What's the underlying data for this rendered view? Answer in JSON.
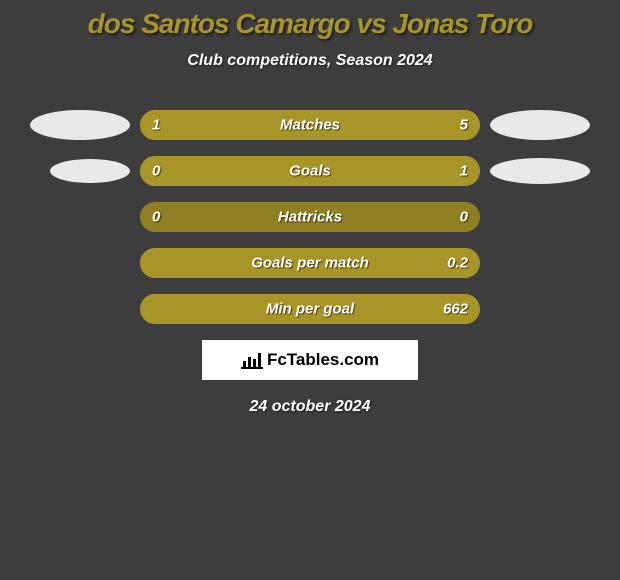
{
  "background_color": "#3d3d3d",
  "title": {
    "text": "dos Santos Camargo vs Jonas Toro",
    "color": "#a89527",
    "fontsize": 28
  },
  "subtitle": {
    "text": "Club competitions, Season 2024",
    "fontsize": 16
  },
  "accent_color": "#a89527",
  "ellipse_color": "#e9e9e9",
  "bar_bg_color": "#8f7f22",
  "label_fontsize": 15,
  "value_fontsize": 15,
  "rows": [
    {
      "label": "Matches",
      "left_value": "1",
      "right_value": "5",
      "left_ellipse": true,
      "right_ellipse": true,
      "left_fill_pct": 16.7,
      "right_fill_pct": 83.3
    },
    {
      "label": "Goals",
      "left_value": "0",
      "right_value": "1",
      "left_ellipse": true,
      "right_ellipse": true,
      "left_fill_pct": 0,
      "right_fill_pct": 100
    },
    {
      "label": "Hattricks",
      "left_value": "0",
      "right_value": "0",
      "left_ellipse": false,
      "right_ellipse": false,
      "left_fill_pct": 0,
      "right_fill_pct": 0
    },
    {
      "label": "Goals per match",
      "left_value": "",
      "right_value": "0.2",
      "left_ellipse": false,
      "right_ellipse": false,
      "left_fill_pct": 0,
      "right_fill_pct": 100
    },
    {
      "label": "Min per goal",
      "left_value": "",
      "right_value": "662",
      "left_ellipse": false,
      "right_ellipse": false,
      "left_fill_pct": 0,
      "right_fill_pct": 100
    }
  ],
  "attribution": {
    "text": "FcTables.com"
  },
  "date": {
    "text": "24 october 2024",
    "fontsize": 16
  }
}
